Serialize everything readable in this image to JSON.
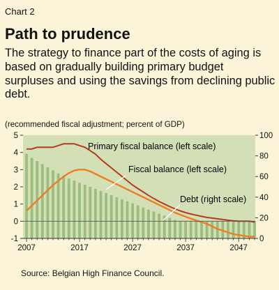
{
  "header": {
    "chart_number": "Chart 2",
    "title": "Path to prudence",
    "description": "The strategy to finance part of the costs of aging is based on gradually building primary budget surpluses and using the savings from declining public debt.",
    "unit_note": "(recommended fiscal adjustment; percent of GDP)"
  },
  "footer": {
    "source": "Source: Belgian High Finance Council."
  },
  "colors": {
    "plot_background": "#d3e0b5",
    "debt_bars": "#9cbd7f",
    "primary_line": "#b53a1e",
    "fiscal_line": "#f07c22",
    "page_background": "#fbf4d8"
  },
  "chart_data": {
    "type": "bar",
    "x_tick_labels": [
      "2007",
      "2017",
      "2027",
      "2037",
      "2047"
    ],
    "left_axis": {
      "ylim": [
        -1,
        5
      ],
      "ticks": [
        -1,
        0,
        1,
        2,
        3,
        4,
        5
      ]
    },
    "right_axis": {
      "ylim": [
        0,
        100
      ],
      "ticks": [
        0,
        20,
        40,
        60,
        80,
        100
      ]
    },
    "grid": false,
    "series": [
      {
        "name": "Debt (right scale)",
        "type": "bar",
        "axis": "right",
        "x": [
          2007,
          2008,
          2009,
          2010,
          2011,
          2012,
          2013,
          2014,
          2015,
          2016,
          2017,
          2018,
          2019,
          2020,
          2021,
          2022,
          2023,
          2024,
          2025,
          2026,
          2027,
          2028,
          2029,
          2030,
          2031,
          2032,
          2033,
          2034,
          2035,
          2036,
          2037,
          2038,
          2039,
          2040,
          2041,
          2042,
          2043,
          2044,
          2045,
          2046,
          2047,
          2048,
          2049,
          2050
        ],
        "values": [
          82,
          78,
          75,
          72,
          69,
          66,
          63,
          60,
          58,
          56,
          54,
          52,
          50,
          48,
          46,
          44,
          42,
          40,
          38,
          36,
          34,
          32,
          30,
          28,
          26,
          24,
          22,
          20,
          18,
          17,
          17,
          17,
          17,
          17,
          17,
          17,
          17,
          17,
          17,
          17,
          17,
          17,
          17,
          17
        ]
      },
      {
        "name": "Primary fiscal balance (left scale)",
        "type": "line",
        "axis": "left",
        "x": [
          2007,
          2008,
          2009,
          2010,
          2011,
          2012,
          2013,
          2014,
          2015,
          2016,
          2017,
          2018,
          2019,
          2020,
          2021,
          2022,
          2023,
          2024,
          2025,
          2026,
          2027,
          2028,
          2029,
          2030,
          2031,
          2032,
          2033,
          2034,
          2035,
          2036,
          2037,
          2038,
          2039,
          2040,
          2041,
          2042,
          2043,
          2044,
          2045,
          2046,
          2047,
          2048,
          2049,
          2050
        ],
        "values": [
          4.2,
          4.2,
          4.3,
          4.3,
          4.3,
          4.3,
          4.4,
          4.5,
          4.5,
          4.5,
          4.4,
          4.3,
          4.1,
          3.9,
          3.6,
          3.35,
          3.1,
          2.85,
          2.6,
          2.35,
          2.1,
          1.9,
          1.7,
          1.5,
          1.32,
          1.15,
          1.0,
          0.85,
          0.72,
          0.6,
          0.5,
          0.42,
          0.35,
          0.28,
          0.22,
          0.18,
          0.14,
          0.1,
          0.06,
          0.02,
          0.0,
          0.0,
          0.0,
          -0.05
        ]
      },
      {
        "name": "Fiscal balance (left scale)",
        "type": "line",
        "axis": "left",
        "x": [
          2007,
          2008,
          2009,
          2010,
          2011,
          2012,
          2013,
          2014,
          2015,
          2016,
          2017,
          2018,
          2019,
          2020,
          2021,
          2022,
          2023,
          2024,
          2025,
          2026,
          2027,
          2028,
          2029,
          2030,
          2031,
          2032,
          2033,
          2034,
          2035,
          2036,
          2037,
          2038,
          2039,
          2040,
          2041,
          2042,
          2043,
          2044,
          2045,
          2046,
          2047,
          2048,
          2049,
          2050
        ],
        "values": [
          0.6,
          0.9,
          1.2,
          1.5,
          1.8,
          2.1,
          2.35,
          2.6,
          2.8,
          2.95,
          3.0,
          3.0,
          2.9,
          2.75,
          2.6,
          2.45,
          2.3,
          2.15,
          2.0,
          1.85,
          1.7,
          1.55,
          1.4,
          1.25,
          1.1,
          0.95,
          0.8,
          0.65,
          0.5,
          0.38,
          0.26,
          0.15,
          0.05,
          -0.05,
          -0.15,
          -0.3,
          -0.45,
          -0.55,
          -0.65,
          -0.75,
          -0.8,
          -0.85,
          -0.9,
          -0.9
        ]
      }
    ]
  }
}
